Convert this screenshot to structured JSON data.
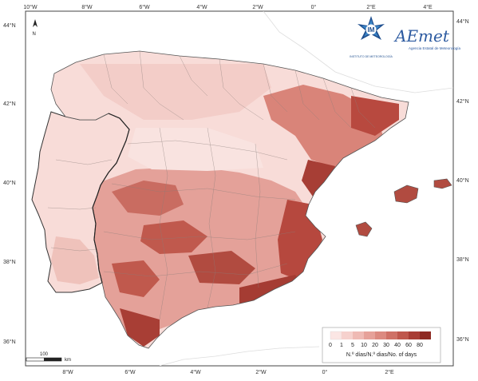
{
  "map": {
    "top_lon_labels": [
      "10°W",
      "8°W",
      "6°W",
      "4°W",
      "2°W",
      "0°",
      "2°E",
      "4°E"
    ],
    "bottom_lon_labels": [
      "8°W",
      "6°W",
      "4°W",
      "2°W",
      "0°",
      "2°E"
    ],
    "left_lat_labels": [
      "44°N",
      "42°N",
      "40°N",
      "38°N",
      "36°N"
    ],
    "right_lat_labels": [
      "44°N",
      "42°N",
      "40°N",
      "38°N",
      "36°N"
    ],
    "north_label": "N",
    "scale_bar_value": "100",
    "scale_bar_unit": "km"
  },
  "logos": {
    "im_text": "IM",
    "im_caption": "INSTITUTO DE METEOROLOGÍA",
    "aemet_text": "AEmet",
    "aemet_caption": "Agencia Estatal de Meteorología"
  },
  "legend": {
    "ticks": [
      "0",
      "1",
      "5",
      "10",
      "20",
      "30",
      "40",
      "60",
      "80"
    ],
    "title": "N.º días/N.º dias/No. of days",
    "colors": [
      "#fbe6e4",
      "#f6d1cd",
      "#efbab4",
      "#e6a199",
      "#dc8a80",
      "#cf7166",
      "#bf574c",
      "#a83d34",
      "#8e2a23"
    ]
  }
}
